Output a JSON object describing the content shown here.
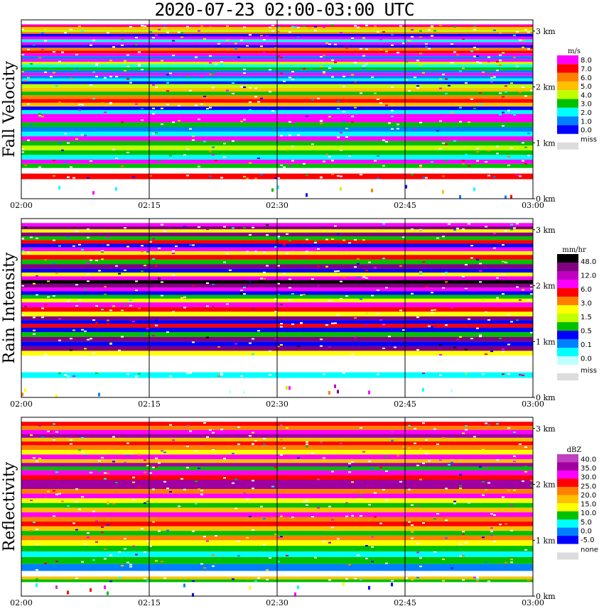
{
  "title": "2020-07-23   02:00-03:00 UTC",
  "chart_data": [
    {
      "type": "heatmap",
      "ylabel": "Fall Velocity",
      "x_ticks": [
        "02:00",
        "02:15",
        "02:30",
        "02:45",
        "03:00"
      ],
      "y_ticks": [
        "3 km",
        "2 km",
        "1 km",
        "0 km"
      ],
      "y_tick_values_km": [
        3,
        2,
        1,
        0
      ],
      "y_range_km": [
        0,
        3.2
      ],
      "x_range": [
        "02:00",
        "03:00"
      ],
      "grid": true,
      "colorbar": {
        "unit": "m/s",
        "levels": [
          "8.0",
          "7.0",
          "6.0",
          "5.0",
          "4.0",
          "3.0",
          "2.0",
          "1.0",
          "0.0"
        ],
        "colors": [
          "#ff00ff",
          "#ff0000",
          "#ff8000",
          "#ffc000",
          "#c0ff00",
          "#00c000",
          "#00ffff",
          "#0080ff",
          "#0000ff"
        ],
        "missing_label": "miss",
        "missing_color": "#dcdcdc"
      },
      "rows": [
        {
          "km_from": 3.05,
          "km_to": 3.12,
          "values": [
            8.0,
            7.0,
            5.0
          ]
        },
        {
          "km_from": 2.95,
          "km_to": 3.05,
          "values": [
            5.0,
            4.0,
            6.0
          ]
        },
        {
          "km_from": 2.8,
          "km_to": 2.95,
          "values": [
            0.0,
            8.0,
            2.0
          ]
        },
        {
          "km_from": 2.65,
          "km_to": 2.8,
          "values": [
            8.0,
            0.0,
            6.0
          ]
        },
        {
          "km_from": 2.5,
          "km_to": 2.65,
          "values": [
            7.0,
            8.0,
            1.0
          ]
        },
        {
          "km_from": 2.35,
          "km_to": 2.5,
          "values": [
            8.0,
            4.0,
            2.0
          ]
        },
        {
          "km_from": 2.2,
          "km_to": 2.35,
          "values": [
            3.0,
            1.0,
            8.0
          ]
        },
        {
          "km_from": 2.05,
          "km_to": 2.2,
          "values": [
            1.0,
            2.0,
            0.0
          ]
        },
        {
          "km_from": 1.85,
          "km_to": 2.05,
          "values": [
            4.0,
            5.0,
            3.0
          ]
        },
        {
          "km_from": 1.65,
          "km_to": 1.85,
          "values": [
            6.0,
            7.0,
            5.0
          ]
        },
        {
          "km_from": 1.45,
          "km_to": 1.65,
          "values": [
            0.0,
            2.0,
            8.0
          ]
        },
        {
          "km_from": 1.2,
          "km_to": 1.45,
          "values": [
            8.0,
            3.0,
            1.0
          ]
        },
        {
          "km_from": 0.95,
          "km_to": 1.2,
          "values": [
            2.0,
            8.0,
            3.0
          ]
        },
        {
          "km_from": 0.7,
          "km_to": 0.95,
          "values": [
            4.0,
            3.0,
            2.0
          ]
        },
        {
          "km_from": 0.55,
          "km_to": 0.7,
          "values": [
            8.0,
            3.0
          ]
        },
        {
          "km_from": 0.35,
          "km_to": 0.45,
          "values": [
            7.0
          ]
        }
      ]
    },
    {
      "type": "heatmap",
      "ylabel": "Rain Intensity",
      "x_ticks": [
        "02:00",
        "02:15",
        "02:30",
        "02:45",
        "03:00"
      ],
      "y_ticks": [
        "3 km",
        "2 km",
        "1 km",
        "0 km"
      ],
      "y_tick_values_km": [
        3,
        2,
        1,
        0
      ],
      "y_range_km": [
        0,
        3.2
      ],
      "x_range": [
        "02:00",
        "03:00"
      ],
      "grid": true,
      "colorbar": {
        "unit": "mm/hr",
        "levels": [
          "48.0",
          "12.0",
          "6.0",
          "3.0",
          "1.5",
          "0.5",
          "0.1",
          "0.0"
        ],
        "colors": [
          "#000000",
          "#800080",
          "#c000c0",
          "#ff00ff",
          "#ff0000",
          "#ff8000",
          "#ffff00",
          "#c0ff00",
          "#00c000",
          "#0000ff",
          "#0080ff",
          "#00ffff",
          "#c0ffff"
        ],
        "missing_label": "miss",
        "missing_color": "#dcdcdc"
      },
      "rows": [
        {
          "km_from": 2.95,
          "km_to": 3.12,
          "values": [
            6.0,
            12.0,
            1.5
          ]
        },
        {
          "km_from": 2.75,
          "km_to": 2.95,
          "values": [
            12.0,
            0.5,
            3.0
          ]
        },
        {
          "km_from": 2.55,
          "km_to": 2.75,
          "values": [
            0.1,
            6.0,
            1.5
          ]
        },
        {
          "km_from": 2.3,
          "km_to": 2.55,
          "values": [
            3.0,
            0.5,
            12.0
          ]
        },
        {
          "km_from": 2.1,
          "km_to": 2.3,
          "values": [
            0.1,
            1.5,
            6.0
          ]
        },
        {
          "km_from": 1.9,
          "km_to": 2.1,
          "values": [
            48.0,
            12.0,
            6.0
          ]
        },
        {
          "km_from": 1.7,
          "km_to": 1.9,
          "values": [
            0.1,
            0.5,
            1.5
          ]
        },
        {
          "km_from": 1.45,
          "km_to": 1.7,
          "values": [
            6.0,
            3.0,
            1.5
          ]
        },
        {
          "km_from": 1.25,
          "km_to": 1.45,
          "values": [
            12.0,
            0.1,
            3.0
          ]
        },
        {
          "km_from": 1.0,
          "km_to": 1.25,
          "values": [
            0.1,
            0.5,
            12.0
          ]
        },
        {
          "km_from": 0.75,
          "km_to": 1.0,
          "values": [
            0.1,
            12.0,
            1.5
          ]
        },
        {
          "km_from": 0.35,
          "km_to": 0.45,
          "values": [
            0.0
          ]
        }
      ]
    },
    {
      "type": "heatmap",
      "ylabel": "Reflectivity",
      "x_ticks": [
        "02:00",
        "02:15",
        "02:30",
        "02:45",
        "03:00"
      ],
      "y_ticks": [
        "3 km",
        "2 km",
        "1 km",
        "0 km"
      ],
      "y_tick_values_km": [
        3,
        2,
        1,
        0
      ],
      "y_range_km": [
        0,
        3.2
      ],
      "x_range": [
        "02:00",
        "03:00"
      ],
      "grid": true,
      "colorbar": {
        "unit": "dBZ",
        "levels": [
          "40.0",
          "35.0",
          "30.0",
          "25.0",
          "20.0",
          "15.0",
          "10.0",
          "5.0",
          "0.0",
          "-5.0"
        ],
        "colors": [
          "#c040c0",
          "#a000a0",
          "#ff00ff",
          "#ff0000",
          "#ff8000",
          "#ffc000",
          "#ffff00",
          "#00c000",
          "#00ffff",
          "#0080ff",
          "#0000ff"
        ],
        "missing_label": "none",
        "missing_color": "#dcdcdc"
      },
      "rows": [
        {
          "km_from": 2.9,
          "km_to": 3.12,
          "values": [
            25.0,
            20.0,
            30.0
          ]
        },
        {
          "km_from": 2.7,
          "km_to": 2.9,
          "values": [
            35.0,
            15.0,
            25.0
          ]
        },
        {
          "km_from": 2.45,
          "km_to": 2.7,
          "values": [
            20.0,
            10.0,
            30.0
          ]
        },
        {
          "km_from": 2.25,
          "km_to": 2.45,
          "values": [
            15.0,
            35.0,
            5.0
          ]
        },
        {
          "km_from": 2.0,
          "km_to": 2.25,
          "values": [
            30.0,
            25.0,
            35.0
          ]
        },
        {
          "km_from": 1.75,
          "km_to": 2.0,
          "values": [
            35.0,
            20.0,
            30.0
          ]
        },
        {
          "km_from": 1.5,
          "km_to": 1.75,
          "values": [
            10.0,
            5.0,
            15.0
          ]
        },
        {
          "km_from": 1.25,
          "km_to": 1.5,
          "values": [
            30.0,
            20.0,
            25.0
          ]
        },
        {
          "km_from": 1.0,
          "km_to": 1.25,
          "values": [
            15.0,
            5.0,
            20.0
          ]
        },
        {
          "km_from": 0.7,
          "km_to": 1.0,
          "values": [
            10.0,
            5.0,
            0.0
          ]
        },
        {
          "km_from": 0.45,
          "km_to": 0.7,
          "values": [
            5.0,
            -5.0
          ]
        },
        {
          "km_from": 0.25,
          "km_to": 0.35,
          "values": [
            15.0,
            5.0
          ]
        }
      ]
    }
  ]
}
